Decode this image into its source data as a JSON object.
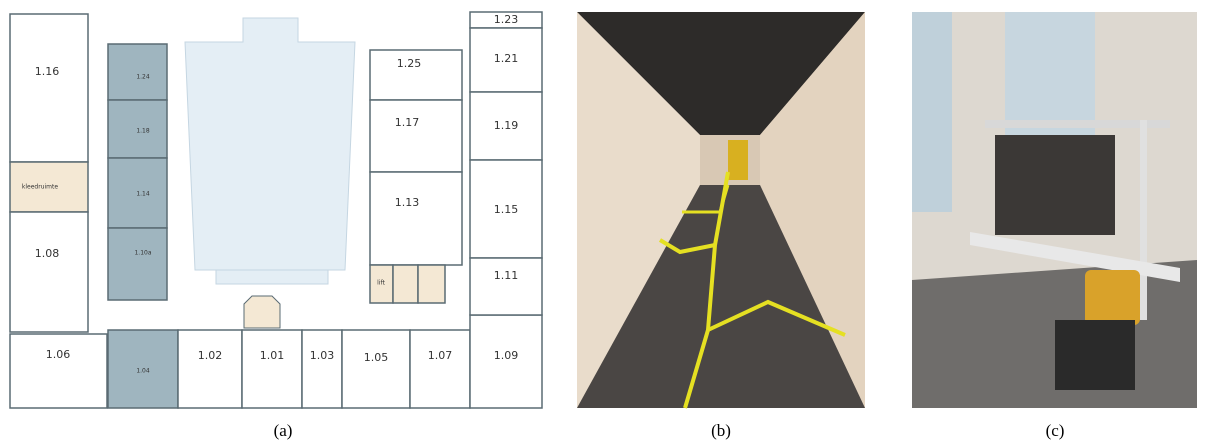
{
  "floor_plan": {
    "rooms": [
      "1.16",
      "kleedruimte",
      "1.08",
      "1.06",
      "1.24",
      "1.18",
      "1.14",
      "1.10a",
      "1.04",
      "1.02",
      "1.01",
      "1.03",
      "1.05",
      "1.07",
      "1.09",
      "1.25",
      "1.17",
      "1.13",
      "lift",
      "1.23",
      "1.21",
      "1.19",
      "1.15",
      "1.11"
    ]
  },
  "captions": [
    "(a)",
    "(b)",
    "(c)"
  ]
}
